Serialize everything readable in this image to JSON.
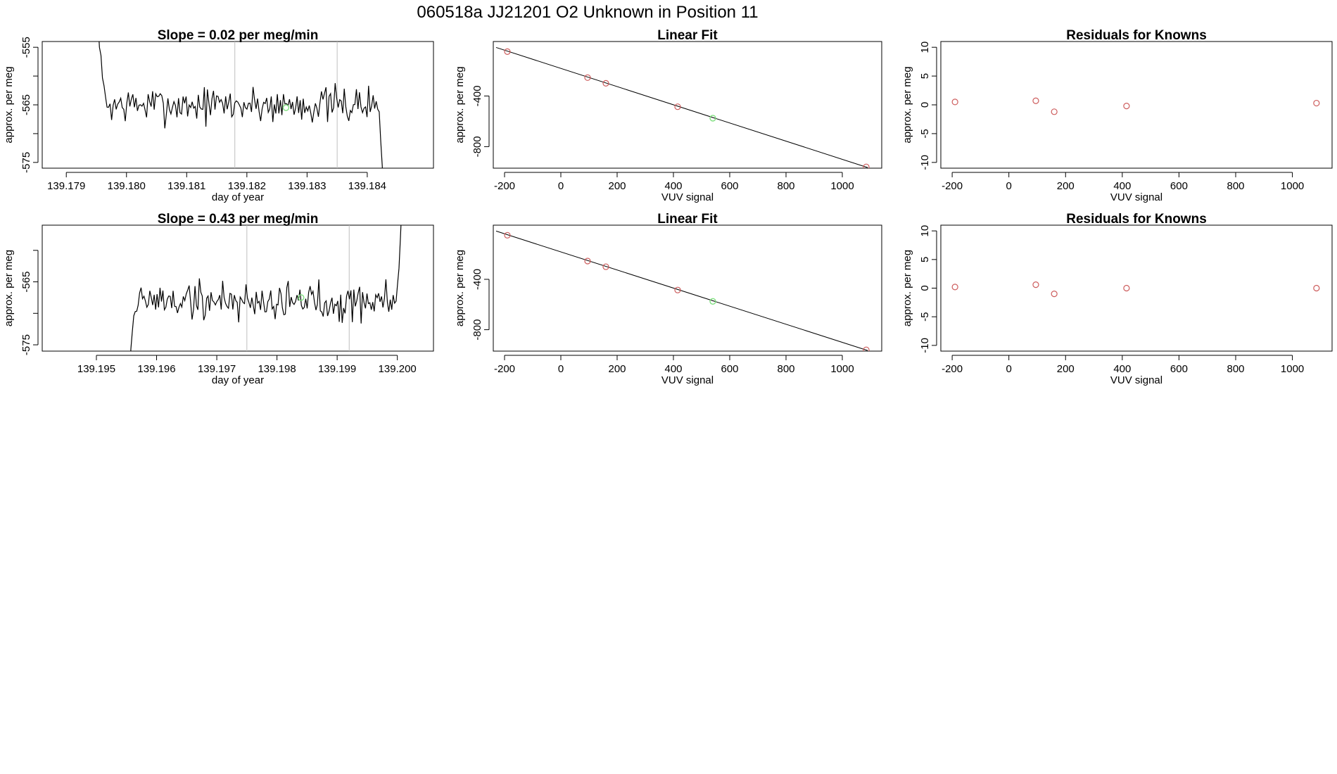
{
  "page_title": "060518a      JJ21201   O2 Unknown in Position  11",
  "colors": {
    "axis": "#000000",
    "line": "#000000",
    "grid": "#bebebe",
    "known": "#cd5c5c",
    "unknown": "#7fe07f"
  },
  "chart_data": [
    {
      "type": "line",
      "title": "Slope =  0.02  per meg/min",
      "xlabel": "day of year",
      "ylabel": "approx. per meg",
      "xlim": [
        139.1786,
        139.1851
      ],
      "ylim": [
        -576,
        -554
      ],
      "xticks": [
        139.179,
        139.18,
        139.181,
        139.182,
        139.183,
        139.184
      ],
      "xtick_labels": [
        "139.179",
        "139.180",
        "139.181",
        "139.182",
        "139.183",
        "139.184"
      ],
      "yticks": [
        -555,
        -560,
        -565,
        -570,
        -575
      ],
      "ytick_labels": [
        "-555",
        "",
        "-565",
        "",
        "-575"
      ],
      "vlines": [
        139.1818,
        139.1835
      ],
      "series": {
        "x_start": 139.1795,
        "x_end": 139.1843,
        "start_value": -545,
        "end_value": -590,
        "mean": -565,
        "amplitude": 1.6,
        "seed": 7
      },
      "unknown_point": {
        "x": 139.18265,
        "y": -565.5
      }
    },
    {
      "type": "scatter",
      "title": "Linear Fit",
      "xlabel": "VUV signal",
      "ylabel": "approx. per meg",
      "xlim": [
        -240,
        1140
      ],
      "ylim": [
        -970,
        30
      ],
      "xticks": [
        -200,
        0,
        200,
        400,
        600,
        800,
        1000
      ],
      "xtick_labels": [
        "-200",
        "0",
        "200",
        "400",
        "600",
        "800",
        "1000"
      ],
      "yticks": [
        -400,
        -800
      ],
      "ytick_labels": [
        "-400",
        "-800"
      ],
      "fit_line": {
        "x": [
          -230,
          1090
        ],
        "y": [
          -17,
          -965
        ]
      },
      "known_points": [
        {
          "x": -190,
          "y": -50
        },
        {
          "x": 95,
          "y": -255
        },
        {
          "x": 160,
          "y": -300
        },
        {
          "x": 415,
          "y": -485
        },
        {
          "x": 1085,
          "y": -960
        }
      ],
      "unknown_point": {
        "x": 540,
        "y": -575
      }
    },
    {
      "type": "scatter",
      "title": "Residuals for Knowns",
      "xlabel": "VUV signal",
      "ylabel": "approx. per meg",
      "xlim": [
        -240,
        1140
      ],
      "ylim": [
        -11,
        11
      ],
      "xticks": [
        -200,
        0,
        200,
        400,
        600,
        800,
        1000
      ],
      "xtick_labels": [
        "-200",
        "0",
        "200",
        "400",
        "600",
        "800",
        "1000"
      ],
      "yticks": [
        10,
        5,
        0,
        -5,
        -10
      ],
      "ytick_labels": [
        "10",
        "5",
        "0",
        "-5",
        "-10"
      ],
      "known_points": [
        {
          "x": -190,
          "y": 0.5
        },
        {
          "x": 95,
          "y": 0.7
        },
        {
          "x": 160,
          "y": -1.2
        },
        {
          "x": 415,
          "y": -0.2
        },
        {
          "x": 1085,
          "y": 0.3
        }
      ]
    },
    {
      "type": "line",
      "title": "Slope =  0.43  per meg/min",
      "xlabel": "day of year",
      "ylabel": "approx. per meg",
      "xlim": [
        139.1941,
        139.2006
      ],
      "ylim": [
        -576,
        -556
      ],
      "xticks": [
        139.195,
        139.196,
        139.197,
        139.198,
        139.199,
        139.2
      ],
      "xtick_labels": [
        "139.195",
        "139.196",
        "139.197",
        "139.198",
        "139.199",
        "139.200"
      ],
      "yticks": [
        -560,
        -565,
        -570,
        -575
      ],
      "ytick_labels": [
        "",
        "-565",
        "",
        "-575"
      ],
      "vlines": [
        139.1975,
        139.1992
      ],
      "series": {
        "x_start": 139.1955,
        "x_end": 139.2001,
        "start_value": -590,
        "end_value": -545,
        "mean": -568,
        "amplitude": 1.6,
        "seed": 19
      },
      "unknown_point": {
        "x": 139.1984,
        "y": -567.5
      }
    },
    {
      "type": "scatter",
      "title": "Linear Fit",
      "xlabel": "VUV signal",
      "ylabel": "approx. per meg",
      "xlim": [
        -240,
        1140
      ],
      "ylim": [
        -970,
        30
      ],
      "xticks": [
        -200,
        0,
        200,
        400,
        600,
        800,
        1000
      ],
      "xtick_labels": [
        "-200",
        "0",
        "200",
        "400",
        "600",
        "800",
        "1000"
      ],
      "yticks": [
        -400,
        -800
      ],
      "ytick_labels": [
        "-400",
        "-800"
      ],
      "fit_line": {
        "x": [
          -230,
          1090
        ],
        "y": [
          -17,
          -965
        ]
      },
      "known_points": [
        {
          "x": -190,
          "y": -50
        },
        {
          "x": 95,
          "y": -255
        },
        {
          "x": 160,
          "y": -300
        },
        {
          "x": 415,
          "y": -485
        },
        {
          "x": 1085,
          "y": -960
        }
      ],
      "unknown_point": {
        "x": 540,
        "y": -575
      }
    },
    {
      "type": "scatter",
      "title": "Residuals for Knowns",
      "xlabel": "VUV signal",
      "ylabel": "approx. per meg",
      "xlim": [
        -240,
        1140
      ],
      "ylim": [
        -11,
        11
      ],
      "xticks": [
        -200,
        0,
        200,
        400,
        600,
        800,
        1000
      ],
      "xtick_labels": [
        "-200",
        "0",
        "200",
        "400",
        "600",
        "800",
        "1000"
      ],
      "yticks": [
        10,
        5,
        0,
        -5,
        -10
      ],
      "ytick_labels": [
        "10",
        "5",
        "0",
        "-5",
        "-10"
      ],
      "known_points": [
        {
          "x": -190,
          "y": 0.2
        },
        {
          "x": 95,
          "y": 0.6
        },
        {
          "x": 160,
          "y": -1.0
        },
        {
          "x": 415,
          "y": 0.0
        },
        {
          "x": 1085,
          "y": 0.0
        }
      ]
    }
  ]
}
